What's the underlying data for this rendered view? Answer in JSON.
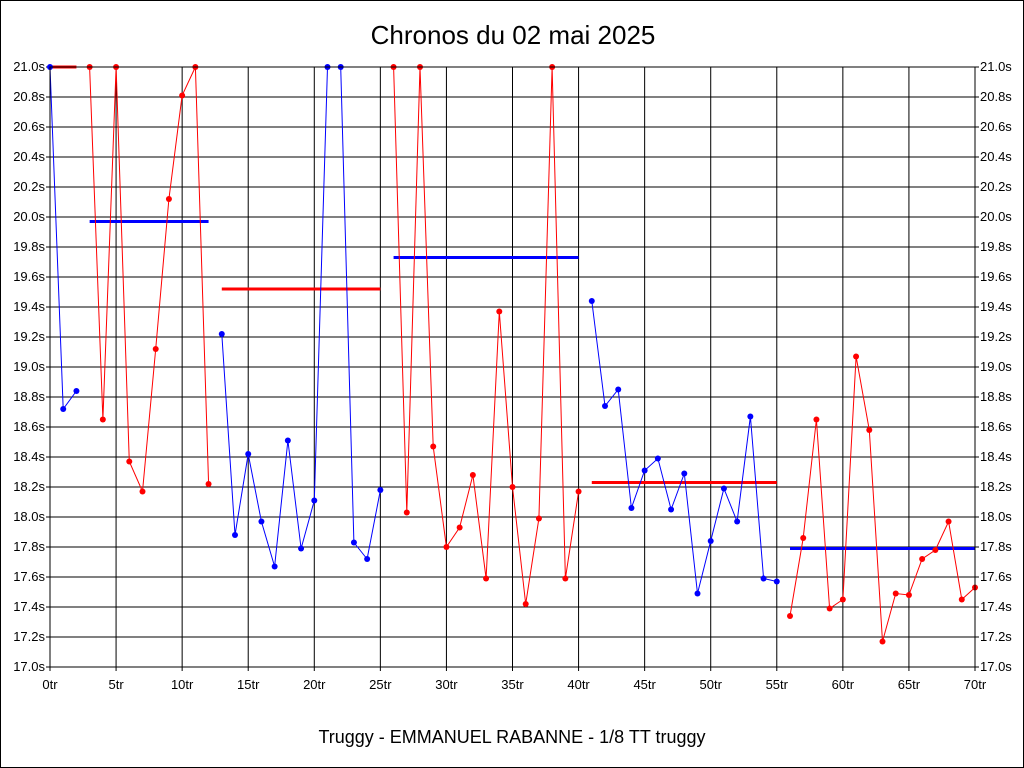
{
  "chart_data": {
    "type": "line",
    "title": "Chronos du 02 mai 2025",
    "subtitle": "Truggy - EMMANUEL RABANNE - 1/8 TT truggy",
    "xlim": [
      0,
      70
    ],
    "ylim": [
      17.0,
      21.0
    ],
    "x_ticks": [
      0,
      5,
      10,
      15,
      20,
      25,
      30,
      35,
      40,
      45,
      50,
      55,
      60,
      65,
      70
    ],
    "x_tick_labels": [
      "0tr",
      "5tr",
      "10tr",
      "15tr",
      "20tr",
      "25tr",
      "30tr",
      "35tr",
      "40tr",
      "45tr",
      "50tr",
      "55tr",
      "60tr",
      "65tr",
      "70tr"
    ],
    "y_ticks": [
      17.0,
      17.2,
      17.4,
      17.6,
      17.8,
      18.0,
      18.2,
      18.4,
      18.6,
      18.8,
      19.0,
      19.2,
      19.4,
      19.6,
      19.8,
      20.0,
      20.2,
      20.4,
      20.6,
      20.8,
      21.0
    ],
    "y_tick_labels": [
      "17.0s",
      "17.2s",
      "17.4s",
      "17.6s",
      "17.8s",
      "18.0s",
      "18.2s",
      "18.4s",
      "18.6s",
      "18.8s",
      "19.0s",
      "19.2s",
      "19.4s",
      "19.6s",
      "19.8s",
      "20.0s",
      "20.2s",
      "20.4s",
      "20.6s",
      "20.8s",
      "21.0s"
    ],
    "grid": true,
    "series": [
      {
        "color": "#0000ff",
        "points": [
          [
            0,
            21.0
          ],
          [
            1,
            18.72
          ],
          [
            2,
            18.84
          ]
        ]
      },
      {
        "color": "#ff0000",
        "points": [
          [
            3,
            21.0
          ],
          [
            4,
            18.65
          ],
          [
            5,
            21.0
          ],
          [
            6,
            18.37
          ],
          [
            7,
            18.17
          ],
          [
            8,
            19.12
          ],
          [
            9,
            20.12
          ],
          [
            10,
            20.81
          ],
          [
            11,
            21.0
          ],
          [
            12,
            18.22
          ]
        ]
      },
      {
        "color": "#0000ff",
        "points": [
          [
            13,
            19.22
          ],
          [
            14,
            17.88
          ],
          [
            15,
            18.42
          ],
          [
            16,
            17.97
          ],
          [
            17,
            17.67
          ],
          [
            18,
            18.51
          ],
          [
            19,
            17.79
          ],
          [
            20,
            18.11
          ],
          [
            21,
            21.0
          ],
          [
            22,
            21.0
          ],
          [
            23,
            17.83
          ],
          [
            24,
            17.72
          ],
          [
            25,
            18.18
          ]
        ]
      },
      {
        "color": "#ff0000",
        "points": [
          [
            26,
            21.0
          ],
          [
            27,
            18.03
          ],
          [
            28,
            21.0
          ],
          [
            29,
            18.47
          ],
          [
            30,
            17.8
          ],
          [
            31,
            17.93
          ],
          [
            32,
            18.28
          ],
          [
            33,
            17.59
          ],
          [
            34,
            19.37
          ],
          [
            35,
            18.2
          ],
          [
            36,
            17.42
          ],
          [
            37,
            17.99
          ],
          [
            38,
            21.0
          ],
          [
            39,
            17.59
          ],
          [
            40,
            18.17
          ]
        ]
      },
      {
        "color": "#0000ff",
        "points": [
          [
            41,
            19.44
          ],
          [
            42,
            18.74
          ],
          [
            43,
            18.85
          ],
          [
            44,
            18.06
          ],
          [
            45,
            18.31
          ],
          [
            46,
            18.39
          ],
          [
            47,
            18.05
          ],
          [
            48,
            18.29
          ],
          [
            49,
            17.49
          ],
          [
            50,
            17.84
          ],
          [
            51,
            18.19
          ],
          [
            52,
            17.97
          ],
          [
            53,
            18.67
          ],
          [
            54,
            17.59
          ],
          [
            55,
            17.57
          ]
        ]
      },
      {
        "color": "#ff0000",
        "points": [
          [
            56,
            17.34
          ],
          [
            57,
            17.86
          ],
          [
            58,
            18.65
          ],
          [
            59,
            17.39
          ],
          [
            60,
            17.45
          ],
          [
            61,
            19.07
          ],
          [
            62,
            18.58
          ],
          [
            63,
            17.17
          ],
          [
            64,
            17.49
          ],
          [
            65,
            17.48
          ],
          [
            66,
            17.72
          ],
          [
            67,
            17.78
          ],
          [
            68,
            17.97
          ],
          [
            69,
            17.45
          ],
          [
            70,
            17.53
          ]
        ]
      }
    ],
    "averages": [
      {
        "color": "#ff0000",
        "x": [
          0,
          2
        ],
        "y": 21.0
      },
      {
        "color": "#0000ff",
        "x": [
          3,
          12
        ],
        "y": 19.97
      },
      {
        "color": "#ff0000",
        "x": [
          13,
          25
        ],
        "y": 19.52
      },
      {
        "color": "#0000ff",
        "x": [
          26,
          40
        ],
        "y": 19.73
      },
      {
        "color": "#ff0000",
        "x": [
          41,
          55
        ],
        "y": 18.23
      },
      {
        "color": "#0000ff",
        "x": [
          56,
          70
        ],
        "y": 17.79
      }
    ]
  }
}
